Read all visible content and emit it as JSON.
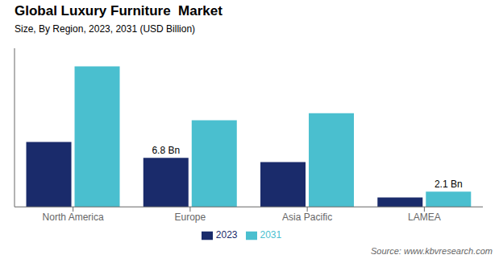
{
  "chart_data": {
    "type": "bar",
    "title": "Global Luxury Furniture  Market",
    "subtitle": "Size, By Region, 2023, 2031 (USD Billion)",
    "source": "Source: www.kbvresearch.com",
    "categories": [
      "North America",
      "Europe",
      "Asia Pacific",
      "LAMEA"
    ],
    "series": [
      {
        "name": "2023",
        "color": "#1a2b6b",
        "values": [
          9.0,
          6.8,
          6.2,
          1.3
        ]
      },
      {
        "name": "2031",
        "color": "#4abfcf",
        "values": [
          19.5,
          12.0,
          13.0,
          2.1
        ]
      }
    ],
    "annotations": [
      {
        "series": "2023",
        "category": "Europe",
        "text": "6.8 Bn",
        "value": 6.8
      },
      {
        "series": "2031",
        "category": "LAMEA",
        "text": "2.1 Bn",
        "value": 2.1
      }
    ],
    "ylim": [
      0,
      22
    ],
    "grid": false,
    "legend": "bottom",
    "tick_labels": "x"
  }
}
